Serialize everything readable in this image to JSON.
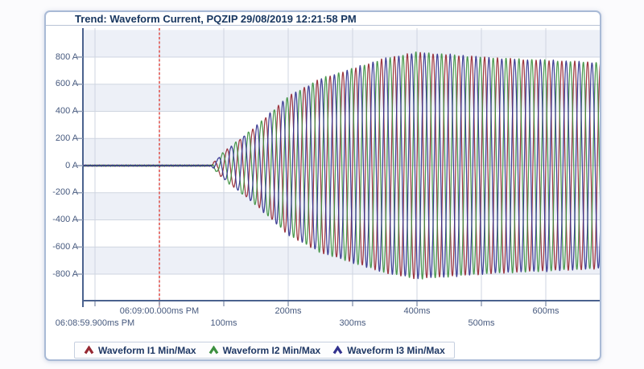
{
  "chart_data": {
    "type": "line",
    "title": "Trend: Waveform Current, PQZIP 29/08/2019 12:21:58 PM",
    "y_unit": "A",
    "ylim": [
      -1000,
      950
    ],
    "y_tick_step_a": 200,
    "y_ticks": [
      {
        "value": 800,
        "label": "800 A"
      },
      {
        "value": 600,
        "label": "600 A"
      },
      {
        "value": 400,
        "label": "400 A"
      },
      {
        "value": 200,
        "label": "200 A"
      },
      {
        "value": 0,
        "label": "0 A"
      },
      {
        "value": -200,
        "label": "-200 A"
      },
      {
        "value": -400,
        "label": "-400 A"
      },
      {
        "value": -600,
        "label": "-600 A"
      },
      {
        "value": -800,
        "label": "-800 A"
      }
    ],
    "x_range_ms": [
      -119,
      685
    ],
    "x_tick_step_ms": 100,
    "x_ticks": [
      {
        "t": -100,
        "label": "06:08:59.900ms PM",
        "row": "bottom"
      },
      {
        "t": 0,
        "label": "06:09:00.000ms PM",
        "row": "top"
      },
      {
        "t": 100,
        "label": "100ms",
        "row": "bottom"
      },
      {
        "t": 200,
        "label": "200ms",
        "row": "top"
      },
      {
        "t": 300,
        "label": "300ms",
        "row": "bottom"
      },
      {
        "t": 400,
        "label": "400ms",
        "row": "top"
      },
      {
        "t": 500,
        "label": "500ms",
        "row": "bottom"
      },
      {
        "t": 600,
        "label": "600ms",
        "row": "top"
      }
    ],
    "cursor": {
      "t_ms": 0,
      "color": "#e04a44",
      "style": "dashed"
    },
    "waveform": {
      "frequency_hz": 50,
      "flat_until_ms": 80,
      "noise_amp_a": 6,
      "envelope_points_ms_a": [
        [
          80,
          0
        ],
        [
          100,
          100
        ],
        [
          150,
          290
        ],
        [
          200,
          510
        ],
        [
          250,
          640
        ],
        [
          300,
          715
        ],
        [
          350,
          790
        ],
        [
          400,
          835
        ],
        [
          450,
          818
        ],
        [
          500,
          800
        ],
        [
          550,
          786
        ],
        [
          600,
          777
        ],
        [
          650,
          766
        ],
        [
          700,
          757
        ]
      ]
    },
    "series": [
      {
        "name": "Waveform I1 Min/Max",
        "color": "#962832",
        "phase_deg": 0
      },
      {
        "name": "Waveform I2 Min/Max",
        "color": "#3d9140",
        "phase_deg": 120
      },
      {
        "name": "Waveform I3 Min/Max",
        "color": "#32328e",
        "phase_deg": -120
      }
    ],
    "legend_position": "bottom-left",
    "grid": {
      "vertical_every_ms": 100,
      "horizontal_every_a": 200,
      "alternating_bands": true
    }
  }
}
